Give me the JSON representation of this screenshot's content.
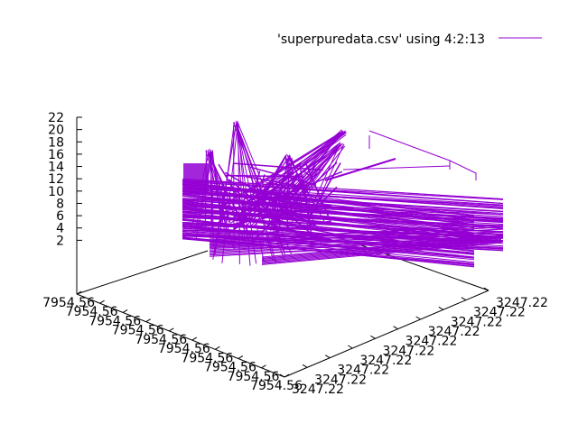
{
  "chart_data": {
    "type": "line",
    "projection": "3d",
    "legend": {
      "label": "'superpuredata.csv' using 4:2:13",
      "placement": "top-right",
      "color": "#9400d3"
    },
    "series_color": "#9400d3",
    "z_ticks": [
      "2",
      "4",
      "6",
      "8",
      "10",
      "12",
      "14",
      "16",
      "18",
      "20",
      "22"
    ],
    "z_range": [
      0,
      22
    ],
    "x_ticks": [
      "7954.56",
      "7954.56",
      "7954.56",
      "7954.56",
      "7954.56",
      "7954.56",
      "7954.56",
      "7954.56",
      "7954.56",
      "7954.56"
    ],
    "y_ticks": [
      "3247.22",
      "3247.22",
      "3247.22",
      "3247.22",
      "3247.22",
      "3247.22",
      "3247.22",
      "3247.22",
      "3247.22",
      "3247.22"
    ],
    "slab_levels": [
      3,
      4,
      5,
      6,
      7,
      8,
      9,
      10,
      11,
      12
    ],
    "spike_peaks": [
      21.5,
      20,
      18,
      17,
      16
    ]
  }
}
